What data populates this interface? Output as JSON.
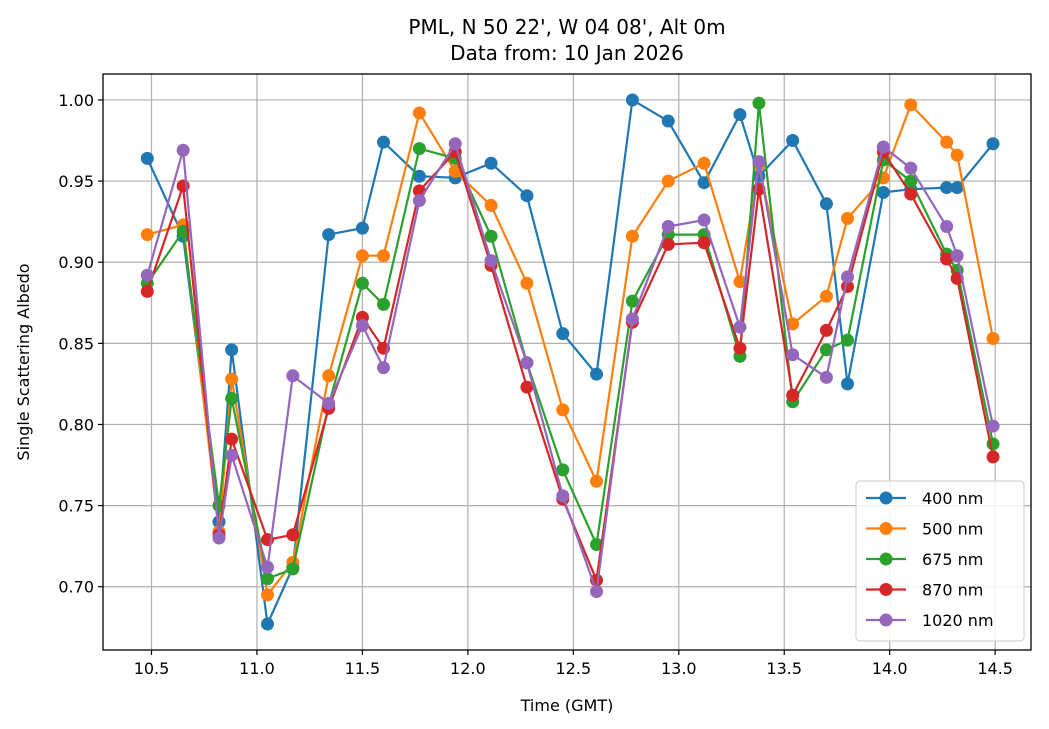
{
  "chart_data": {
    "type": "line",
    "title": [
      "PML, N 50 22', W 04 08', Alt 0m",
      "Data from: 10 Jan 2026"
    ],
    "xlabel": "Time (GMT)",
    "ylabel": "Single Scattering Albedo",
    "xlim": [
      10.27,
      14.67
    ],
    "ylim": [
      0.661,
      1.016
    ],
    "xticks": [
      10.5,
      11.0,
      11.5,
      12.0,
      12.5,
      13.0,
      13.5,
      14.0,
      14.5
    ],
    "xtick_labels": [
      "10.5",
      "11.0",
      "11.5",
      "12.0",
      "12.5",
      "13.0",
      "13.5",
      "14.0",
      "14.5"
    ],
    "yticks": [
      0.7,
      0.75,
      0.8,
      0.85,
      0.9,
      0.95,
      1.0
    ],
    "ytick_labels": [
      "0.70",
      "0.75",
      "0.80",
      "0.85",
      "0.90",
      "0.95",
      "1.00"
    ],
    "grid": true,
    "legend_position": "bottom-right",
    "x": [
      10.48,
      10.65,
      10.82,
      10.88,
      11.05,
      11.17,
      11.34,
      11.5,
      11.6,
      11.77,
      11.94,
      12.11,
      12.28,
      12.45,
      12.61,
      12.78,
      12.95,
      13.12,
      13.29,
      13.38,
      13.54,
      13.7,
      13.8,
      13.97,
      14.1,
      14.27,
      14.32,
      14.49
    ],
    "series": [
      {
        "name": "400 nm",
        "color": "#1f77b4",
        "values": [
          0.964,
          0.916,
          0.74,
          0.846,
          0.677,
          0.712,
          0.917,
          0.921,
          0.974,
          0.953,
          0.952,
          0.961,
          0.941,
          0.856,
          0.831,
          1.0,
          0.987,
          0.949,
          0.991,
          0.953,
          0.975,
          0.936,
          0.825,
          0.943,
          0.945,
          0.946,
          0.946,
          0.973
        ]
      },
      {
        "name": "500 nm",
        "color": "#ff7f0e",
        "values": [
          0.917,
          0.923,
          0.734,
          0.828,
          0.695,
          0.715,
          0.83,
          0.904,
          0.904,
          0.992,
          0.956,
          0.935,
          0.887,
          0.809,
          0.765,
          0.916,
          0.95,
          0.961,
          0.888,
          0.96,
          0.862,
          0.879,
          0.927,
          0.952,
          0.997,
          0.974,
          0.966,
          0.853
        ]
      },
      {
        "name": "675 nm",
        "color": "#2ca02c",
        "values": [
          0.887,
          0.919,
          0.75,
          0.816,
          0.705,
          0.711,
          0.812,
          0.887,
          0.874,
          0.97,
          0.964,
          0.916,
          0.838,
          0.772,
          0.726,
          0.876,
          0.917,
          0.917,
          0.842,
          0.998,
          0.814,
          0.846,
          0.852,
          0.963,
          0.95,
          0.905,
          0.895,
          0.788
        ]
      },
      {
        "name": "870 nm",
        "color": "#d62728",
        "values": [
          0.882,
          0.947,
          0.732,
          0.791,
          0.729,
          0.732,
          0.81,
          0.866,
          0.847,
          0.944,
          0.968,
          0.898,
          0.823,
          0.754,
          0.704,
          0.863,
          0.911,
          0.912,
          0.847,
          0.945,
          0.818,
          0.858,
          0.885,
          0.968,
          0.942,
          0.902,
          0.89,
          0.78
        ]
      },
      {
        "name": "1020 nm",
        "color": "#9467bd",
        "values": [
          0.892,
          0.969,
          0.73,
          0.781,
          0.712,
          0.83,
          0.813,
          0.861,
          0.835,
          0.938,
          0.973,
          0.901,
          0.838,
          0.756,
          0.697,
          0.865,
          0.922,
          0.926,
          0.86,
          0.962,
          0.843,
          0.829,
          0.891,
          0.971,
          0.958,
          0.922,
          0.904,
          0.799
        ]
      }
    ]
  }
}
